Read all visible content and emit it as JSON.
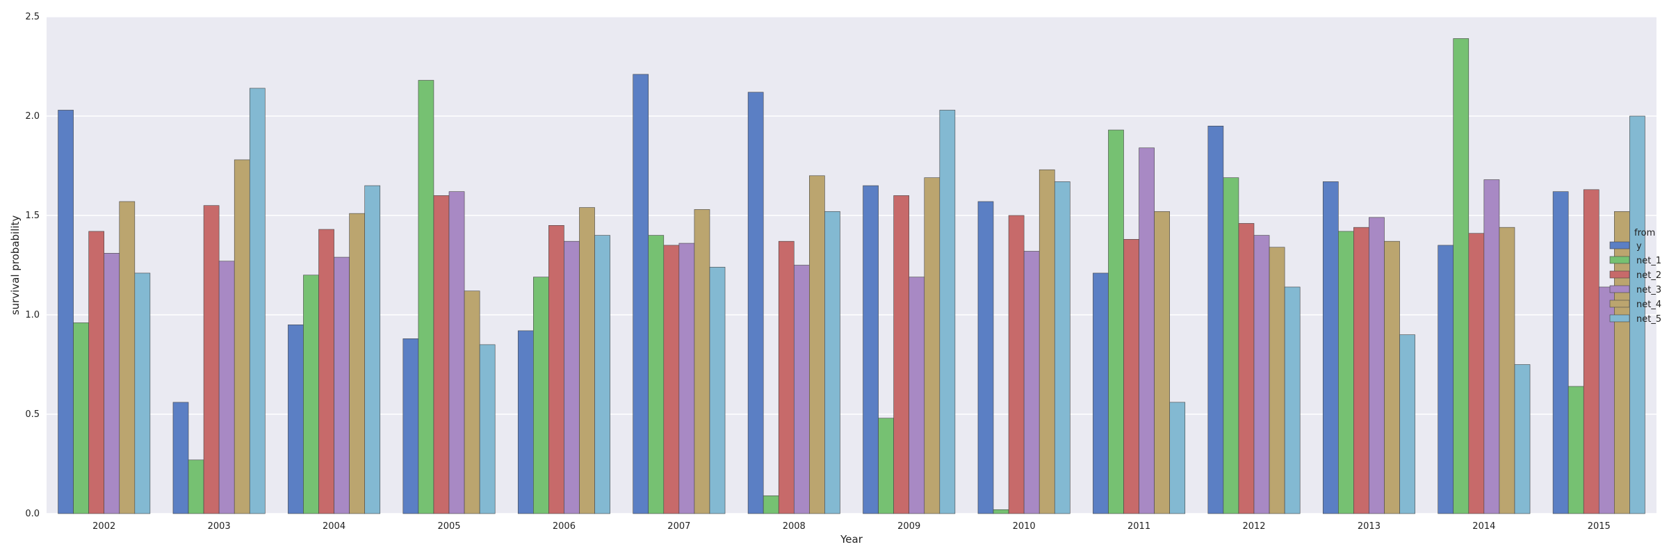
{
  "chart_data": {
    "type": "bar",
    "xlabel": "Year",
    "ylabel": "survival probability",
    "ylim": [
      0,
      2.5
    ],
    "yticks": [
      "0.0",
      "0.5",
      "1.0",
      "1.5",
      "2.0",
      "2.5"
    ],
    "grid": true,
    "legend": {
      "title": "from",
      "placement": "right"
    },
    "categories": [
      "2002",
      "2003",
      "2004",
      "2005",
      "2006",
      "2007",
      "2008",
      "2009",
      "2010",
      "2011",
      "2012",
      "2013",
      "2014",
      "2015"
    ],
    "series": [
      {
        "name": "y",
        "color": "#5b7fc4",
        "values": [
          2.03,
          0.56,
          0.95,
          0.88,
          0.92,
          2.21,
          2.12,
          1.65,
          1.57,
          1.21,
          1.95,
          1.67,
          1.35,
          1.62
        ]
      },
      {
        "name": "net_1",
        "color": "#76c172",
        "values": [
          0.96,
          0.27,
          1.2,
          2.18,
          1.19,
          1.4,
          0.09,
          0.48,
          0.02,
          1.93,
          1.69,
          1.42,
          2.39,
          0.64
        ]
      },
      {
        "name": "net_2",
        "color": "#c76a6a",
        "values": [
          1.42,
          1.55,
          1.43,
          1.6,
          1.45,
          1.35,
          1.37,
          1.6,
          1.5,
          1.38,
          1.46,
          1.44,
          1.41,
          1.63
        ]
      },
      {
        "name": "net_3",
        "color": "#a889c4",
        "values": [
          1.31,
          1.27,
          1.29,
          1.62,
          1.37,
          1.36,
          1.25,
          1.19,
          1.32,
          1.84,
          1.4,
          1.49,
          1.68,
          1.14
        ]
      },
      {
        "name": "net_4",
        "color": "#bba56f",
        "values": [
          1.57,
          1.78,
          1.51,
          1.12,
          1.54,
          1.53,
          1.7,
          1.69,
          1.73,
          1.52,
          1.34,
          1.37,
          1.44,
          1.52
        ]
      },
      {
        "name": "net_5",
        "color": "#83b9d2",
        "values": [
          1.21,
          2.14,
          1.65,
          0.85,
          1.4,
          1.24,
          1.52,
          2.03,
          1.67,
          0.56,
          1.14,
          0.9,
          0.75,
          2.0
        ]
      }
    ]
  }
}
